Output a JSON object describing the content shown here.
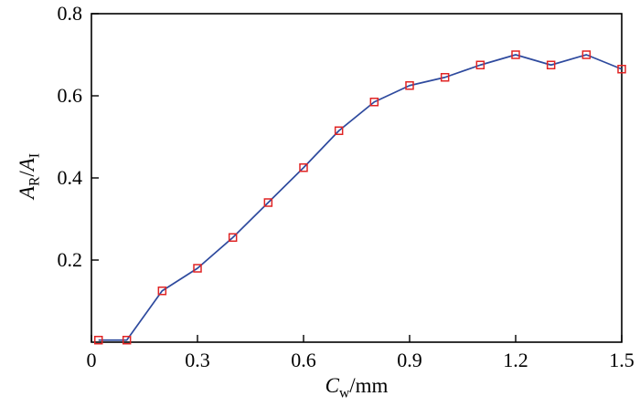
{
  "chart_data": {
    "type": "line",
    "title": "",
    "xlabel": "Cw/mm",
    "ylabel": "AR/AI",
    "xlim": [
      0,
      1.5
    ],
    "ylim": [
      0,
      0.8
    ],
    "x": [
      0.02,
      0.1,
      0.2,
      0.3,
      0.4,
      0.5,
      0.6,
      0.7,
      0.8,
      0.9,
      1.0,
      1.1,
      1.2,
      1.3,
      1.4,
      1.5
    ],
    "y": [
      0.005,
      0.005,
      0.125,
      0.18,
      0.255,
      0.34,
      0.425,
      0.515,
      0.585,
      0.625,
      0.645,
      0.675,
      0.7,
      0.675,
      0.7,
      0.665
    ],
    "x_tick_values": [
      0,
      0.3,
      0.6,
      0.9,
      1.2,
      1.5
    ],
    "x_tick_labels": [
      "0",
      "0.3",
      "0.6",
      "0.9",
      "1.2",
      "1.5"
    ],
    "y_tick_values": [
      0.2,
      0.4,
      0.6,
      0.8
    ],
    "y_tick_labels": [
      "0.2",
      "0.4",
      "0.6",
      "0.8"
    ],
    "grid": false,
    "legend": "none",
    "line_color": "#2e4a9e",
    "marker_color": "#e02424",
    "marker_shape": "open-square",
    "frame_color": "#000000"
  },
  "axes": {
    "ylabel": {
      "num_var": "A",
      "num_sub": "R",
      "sep": "/",
      "den_var": "A",
      "den_sub": "I"
    },
    "xlabel": {
      "var": "C",
      "sub": "w",
      "suffix": "/mm"
    }
  }
}
